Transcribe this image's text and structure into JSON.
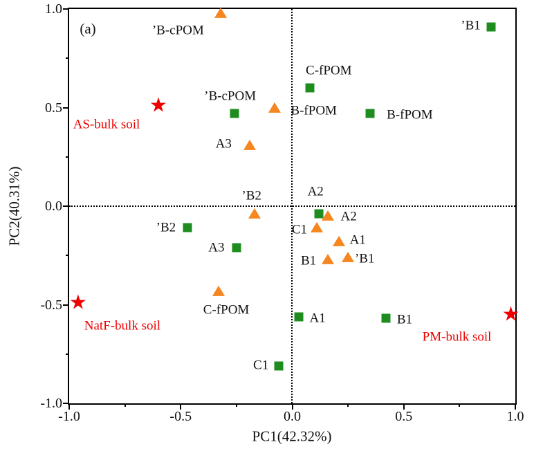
{
  "figure": {
    "panel_label": "(a)",
    "xlabel": "PC1(42.32%)",
    "ylabel": "PC2(40.31%)",
    "x_ticks": [
      "-1.0",
      "-0.5",
      "0.0",
      "0.5",
      "1.0"
    ],
    "y_ticks": [
      "1.0",
      "0.5",
      "0.0",
      "-0.5",
      "-1.0"
    ]
  },
  "colors": {
    "square": "#1f8c1f",
    "triangle": "#f6861f",
    "star": "#ee0000",
    "star_label": "#ee0000",
    "point_label": "#111111",
    "axis": "#000000"
  },
  "chart_data": {
    "type": "scatter",
    "title": "",
    "xlabel": "PC1(42.32%)",
    "ylabel": "PC2(40.31%)",
    "xlim": [
      -1.0,
      1.0
    ],
    "ylim": [
      -1.0,
      1.0
    ],
    "grid": "dotted zero lines only",
    "legend": "none",
    "series": [
      {
        "name": "green-squares",
        "marker": "square",
        "color": "#1f8c1f",
        "points": [
          {
            "label": "’B1",
            "x": 0.89,
            "y": 0.91,
            "label_dx": -29,
            "label_dy": -2
          },
          {
            "label": "C-fPOM",
            "x": 0.08,
            "y": 0.6,
            "label_dx": 27,
            "label_dy": -25
          },
          {
            "label": "’B-cPOM",
            "x": -0.26,
            "y": 0.47,
            "label_dx": -6,
            "label_dy": -25
          },
          {
            "label": "B-fPOM",
            "x": 0.35,
            "y": 0.47,
            "label_dx": 57,
            "label_dy": 2
          },
          {
            "label": "’B2",
            "x": -0.47,
            "y": -0.11,
            "label_dx": -31,
            "label_dy": 0
          },
          {
            "label": "A3",
            "x": -0.25,
            "y": -0.21,
            "label_dx": -29,
            "label_dy": 0
          },
          {
            "label": "A2",
            "x": 0.12,
            "y": -0.04,
            "label_dx": -5,
            "label_dy": -32
          },
          {
            "label": "A1",
            "x": 0.03,
            "y": -0.56,
            "label_dx": 27,
            "label_dy": 2
          },
          {
            "label": "B1",
            "x": 0.42,
            "y": -0.57,
            "label_dx": 27,
            "label_dy": 2
          },
          {
            "label": "C1",
            "x": -0.06,
            "y": -0.81,
            "label_dx": -26,
            "label_dy": -1
          }
        ]
      },
      {
        "name": "orange-triangles",
        "marker": "triangle",
        "color": "#f6861f",
        "points": [
          {
            "label": "’B-cPOM",
            "x": -0.32,
            "y": 0.98,
            "label_dx": -62,
            "label_dy": 25
          },
          {
            "label": "B-fPOM",
            "x": -0.08,
            "y": 0.5,
            "label_dx": 57,
            "label_dy": 4
          },
          {
            "label": "A3",
            "x": -0.19,
            "y": 0.31,
            "label_dx": -38,
            "label_dy": -2
          },
          {
            "label": "’B2",
            "x": -0.17,
            "y": -0.04,
            "label_dx": -4,
            "label_dy": -26
          },
          {
            "label": "A2",
            "x": 0.16,
            "y": -0.05,
            "label_dx": 30,
            "label_dy": 1
          },
          {
            "label": "C1",
            "x": 0.11,
            "y": -0.11,
            "label_dx": -25,
            "label_dy": 3
          },
          {
            "label": "A1",
            "x": 0.21,
            "y": -0.18,
            "label_dx": 27,
            "label_dy": -2
          },
          {
            "label": "B1",
            "x": 0.16,
            "y": -0.27,
            "label_dx": -28,
            "label_dy": 2
          },
          {
            "label": "’B1",
            "x": 0.25,
            "y": -0.26,
            "label_dx": 24,
            "label_dy": 2
          },
          {
            "label": "C-fPOM",
            "x": -0.33,
            "y": -0.43,
            "label_dx": 11,
            "label_dy": 27
          }
        ]
      },
      {
        "name": "red-stars-bulk-soil",
        "marker": "star",
        "color": "#ee0000",
        "label_color": "#ee0000",
        "points": [
          {
            "label": "AS-bulk soil",
            "x": -0.6,
            "y": 0.51,
            "label_dx": -75,
            "label_dy": 27
          },
          {
            "label": "NatF-bulk soil",
            "x": -0.96,
            "y": -0.49,
            "label_dx": 64,
            "label_dy": 33
          },
          {
            "label": "PM-bulk soil",
            "x": 0.98,
            "y": -0.55,
            "label_dx": -78,
            "label_dy": 32
          }
        ]
      }
    ],
    "star_glyph": "★"
  }
}
